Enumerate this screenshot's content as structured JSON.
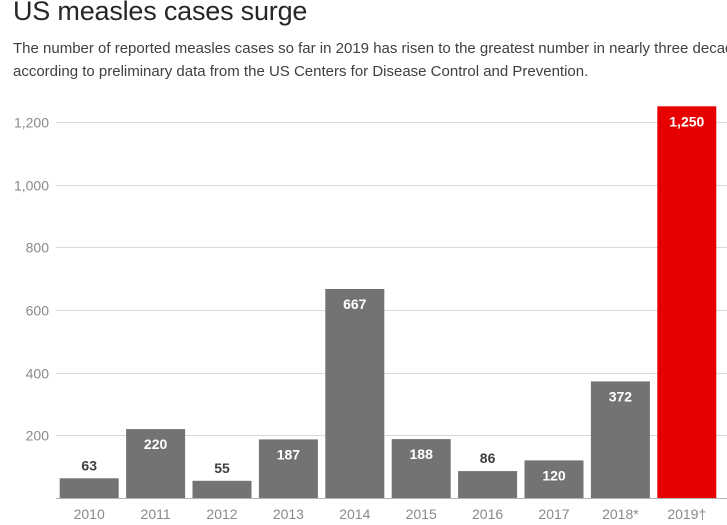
{
  "colors": {
    "bar": "#737373",
    "highlight": "#e60000",
    "grid": "#d9d9d9",
    "axis": "#b3b3b3",
    "tick_text": "#8a8a8a",
    "outside_label": "#404040",
    "inside_label": "#ffffff"
  },
  "chart_data": {
    "type": "bar",
    "title": "US measles cases surge",
    "subtitle": "The number of reported measles cases so far in 2019 has risen to the greatest number in nearly three decades, according to preliminary data from the US Centers for Disease Control and Prevention.",
    "categories": [
      "2010",
      "2011",
      "2012",
      "2013",
      "2014",
      "2015",
      "2016",
      "2017",
      "2018*",
      "2019†"
    ],
    "values": [
      63,
      220,
      55,
      187,
      667,
      188,
      86,
      120,
      372,
      1250
    ],
    "value_labels": [
      "63",
      "220",
      "55",
      "187",
      "667",
      "188",
      "86",
      "120",
      "372",
      "1,250"
    ],
    "highlight_index": 9,
    "ylim": [
      0,
      1200
    ],
    "yticks": [
      200,
      400,
      600,
      800,
      1000,
      1200
    ],
    "ytick_labels": [
      "200",
      "400",
      "600",
      "800",
      "1,000",
      "1,200"
    ],
    "grid": true,
    "legend": false
  }
}
